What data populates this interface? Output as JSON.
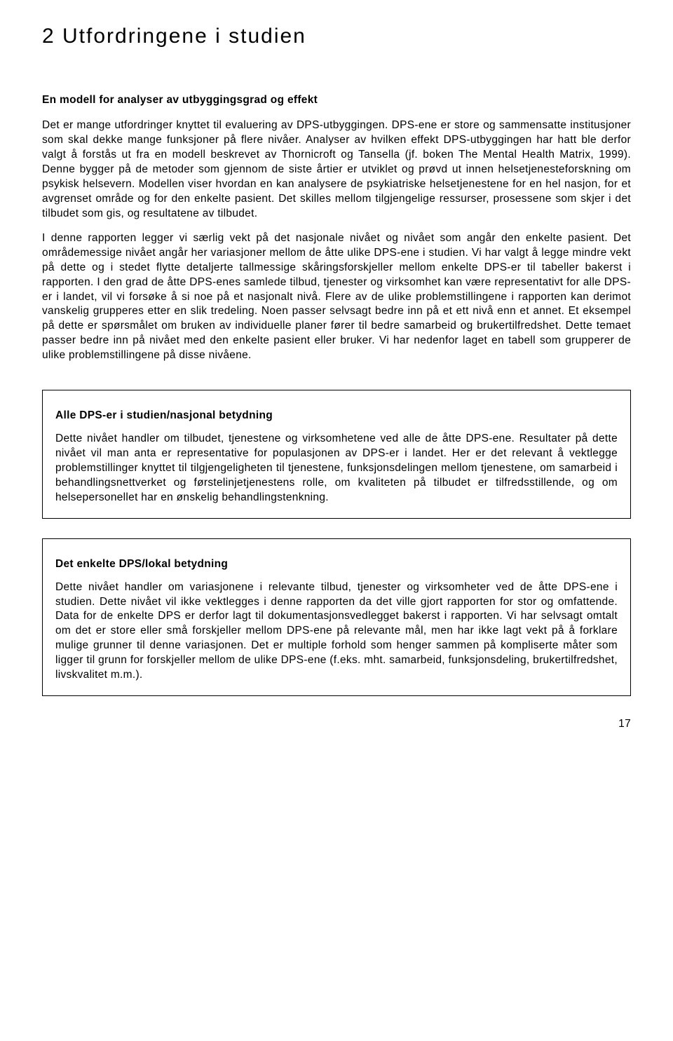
{
  "heading": "2  Utfordringene i studien",
  "subtitle": "En modell for analyser av utbyggingsgrad og effekt",
  "paragraph1": "Det er mange utfordringer knyttet til evaluering av DPS-utbyggingen. DPS-ene er store og sammensatte institusjoner som skal dekke mange funksjoner på flere nivåer. Analyser av hvilken effekt DPS-utbyggingen har hatt ble derfor valgt å forstås ut fra en modell beskrevet av Thornicroft og Tansella (jf. boken The Mental Health Matrix, 1999). Denne bygger på de metoder som gjennom de siste årtier er utviklet og prøvd ut innen helsetjenesteforskning om psykisk helsevern. Modellen viser hvordan en kan analysere de psykiatriske helsetjenestene for en hel nasjon, for et avgrenset område og for den enkelte pasient. Det skilles mellom tilgjengelige ressurser, prosessene som skjer i det tilbudet som gis, og resultatene av tilbudet.",
  "paragraph2": "I denne rapporten legger vi særlig vekt på det nasjonale nivået og nivået som angår den enkelte pasient. Det områdemessige nivået angår her variasjoner mellom de åtte ulike DPS-ene i studien. Vi har valgt å legge mindre vekt på dette og i stedet flytte detaljerte tallmessige skåringsforskjeller mellom enkelte DPS-er til tabeller bakerst i rapporten. I den grad de åtte DPS-enes samlede tilbud, tjenester og virksomhet kan være representativt for alle DPS-er i landet, vil vi forsøke å si noe på et nasjonalt nivå. Flere av de ulike problemstillingene i rapporten kan derimot vanskelig grupperes etter en slik tredeling. Noen passer selvsagt bedre inn på et ett nivå enn et annet. Et eksempel på dette er spørsmålet om bruken av individuelle planer fører til bedre samarbeid og brukertilfredshet. Dette temaet passer bedre inn på nivået med den enkelte pasient eller bruker. Vi har nedenfor laget en tabell som grupperer de ulike problemstillingene på disse nivåene.",
  "box1": {
    "title": "Alle DPS-er i studien/nasjonal betydning",
    "body": "Dette nivået handler om tilbudet, tjenestene og virksomhetene ved alle de åtte DPS-ene. Resultater på dette nivået vil man anta er representative for populasjonen av DPS-er i landet. Her er det relevant å vektlegge problemstillinger knyttet til tilgjengeligheten til tjenestene, funksjonsdelingen mellom tjenestene, om samarbeid i behandlingsnettverket og førstelinjetjenestens rolle, om kvaliteten på tilbudet er tilfredsstillende, og om helsepersonellet har en ønskelig behandlingstenkning."
  },
  "box2": {
    "title": "Det enkelte DPS/lokal betydning",
    "body": "Dette nivået handler om variasjonene i relevante tilbud, tjenester og virksomheter ved de åtte DPS-ene i studien. Dette nivået vil ikke vektlegges i denne rapporten da det ville gjort rapporten for stor og omfattende. Data for de enkelte DPS er derfor lagt til dokumentasjonsvedlegget bakerst i rapporten. Vi har selvsagt omtalt om det er store eller små forskjeller mellom DPS-ene på relevante mål, men har ikke lagt vekt på å forklare mulige grunner til denne variasjonen. Det er multiple forhold som henger sammen på kompliserte måter som ligger til grunn for forskjeller mellom de ulike DPS-ene (f.eks. mht. samarbeid, funksjonsdeling, brukertilfredshet, livskvalitet m.m.)."
  },
  "pageNumber": "17"
}
